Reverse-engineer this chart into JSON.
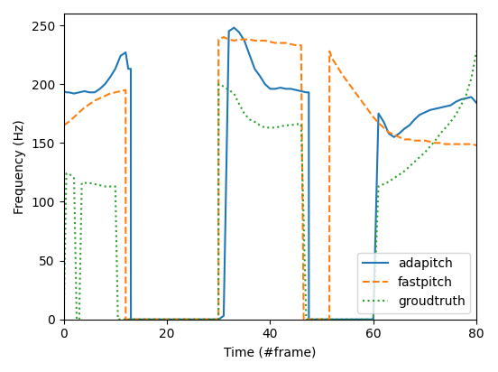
{
  "xlabel": "Time (#frame)",
  "ylabel": "Frequency (Hz)",
  "xlim": [
    0,
    80
  ],
  "ylim": [
    0,
    260
  ],
  "yticks": [
    0,
    50,
    100,
    150,
    200,
    250
  ],
  "xticks": [
    0,
    20,
    40,
    60,
    80
  ],
  "legend_labels": [
    "adapitch",
    "fastpitch",
    "groudtruth"
  ],
  "legend_loc": "lower right",
  "adapitch_x": [
    0,
    0.5,
    1,
    2,
    3,
    4,
    5,
    6,
    7,
    8,
    9,
    10,
    11,
    12,
    12.5,
    13,
    13.01,
    29.99,
    30,
    31,
    32,
    33,
    34,
    35,
    36,
    37,
    38,
    39,
    40,
    41,
    42,
    43,
    44,
    45,
    46,
    47,
    47.5,
    47.51,
    59.99,
    60,
    61,
    62,
    63,
    64,
    65,
    66,
    67,
    68,
    69,
    70,
    71,
    72,
    73,
    74,
    75,
    76,
    77,
    78,
    79,
    80
  ],
  "adapitch_y": [
    194,
    193,
    193,
    192,
    193,
    194,
    193,
    193,
    196,
    200,
    206,
    213,
    224,
    227,
    213,
    213,
    0,
    0,
    0,
    3,
    245,
    248,
    244,
    237,
    225,
    213,
    207,
    200,
    196,
    196,
    197,
    196,
    196,
    195,
    194,
    193,
    193,
    0,
    0,
    0,
    175,
    168,
    158,
    155,
    158,
    162,
    165,
    170,
    174,
    176,
    178,
    179,
    180,
    181,
    182,
    185,
    187,
    188,
    189,
    184
  ],
  "fastpitch_x": [
    0,
    1,
    2,
    3,
    4,
    5,
    6,
    7,
    8,
    9,
    10,
    11,
    12,
    12.01,
    29.99,
    30,
    31,
    32,
    33,
    34,
    35,
    36,
    37,
    38,
    39,
    40,
    41,
    42,
    43,
    44,
    45,
    46,
    46.5,
    46.51,
    51.49,
    51.5,
    52,
    53,
    54,
    55,
    56,
    57,
    58,
    59,
    60,
    61,
    62,
    63,
    64,
    65,
    66,
    67,
    68,
    69,
    70,
    71,
    72,
    73,
    74,
    75,
    76,
    77,
    78,
    79,
    80
  ],
  "fastpitch_y": [
    165,
    168,
    172,
    176,
    180,
    183,
    186,
    188,
    190,
    192,
    193,
    194,
    195,
    0,
    0,
    238,
    240,
    238,
    237,
    238,
    238,
    238,
    237,
    237,
    237,
    236,
    235,
    235,
    235,
    234,
    233,
    233,
    0,
    0,
    0,
    228,
    222,
    215,
    208,
    202,
    196,
    190,
    184,
    178,
    172,
    167,
    163,
    159,
    157,
    155,
    153,
    153,
    152,
    152,
    152,
    151,
    150,
    150,
    149,
    149,
    149,
    149,
    149,
    149,
    148
  ],
  "groudtruth_x": [
    0,
    0.5,
    1,
    2,
    2.5,
    3,
    3.5,
    4,
    5,
    6,
    7,
    8,
    9,
    10,
    10.5,
    11,
    11.01,
    29.99,
    30,
    31,
    32,
    33,
    34,
    35,
    36,
    37,
    38,
    39,
    40,
    41,
    42,
    43,
    44,
    45,
    46,
    47,
    47.01,
    59.99,
    60,
    61,
    62,
    63,
    64,
    65,
    66,
    67,
    68,
    69,
    70,
    71,
    72,
    73,
    74,
    75,
    76,
    77,
    78,
    79,
    80
  ],
  "groudtruth_y": [
    0,
    124,
    124,
    120,
    0,
    0,
    116,
    116,
    116,
    115,
    114,
    113,
    113,
    113,
    0,
    0,
    0,
    0,
    200,
    198,
    195,
    192,
    183,
    175,
    170,
    168,
    165,
    163,
    163,
    163,
    164,
    165,
    165,
    166,
    166,
    0,
    0,
    0,
    0,
    113,
    115,
    117,
    120,
    123,
    126,
    130,
    134,
    138,
    142,
    147,
    152,
    158,
    163,
    168,
    174,
    182,
    191,
    205,
    228
  ],
  "adapitch_color": "#1f77b4",
  "fastpitch_color": "#ff7f0e",
  "groudtruth_color": "#2ca02c",
  "adapitch_linestyle": "solid",
  "fastpitch_linestyle": "dashed",
  "groudtruth_linestyle": "dotted",
  "linewidth": 1.5,
  "figsize": [
    5.52,
    4.12
  ],
  "dpi": 100
}
